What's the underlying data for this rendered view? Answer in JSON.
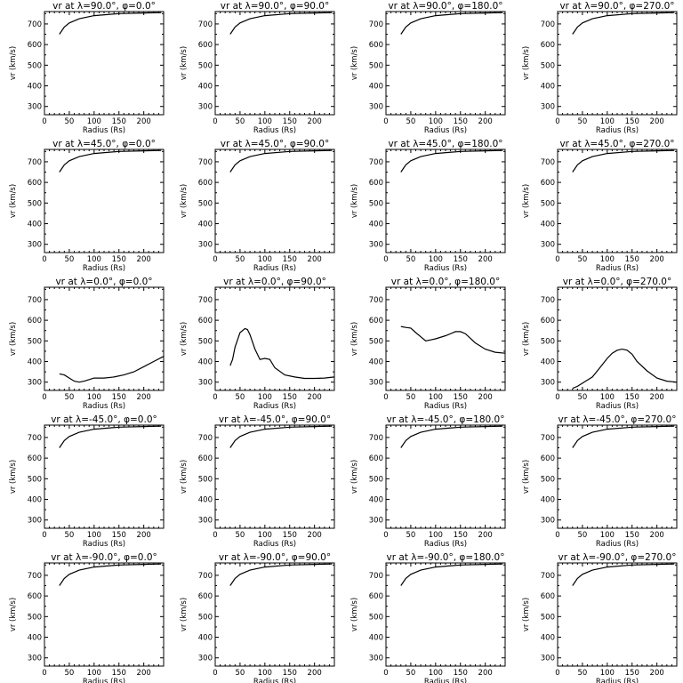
{
  "chart_data": {
    "type": "line",
    "rows": 5,
    "cols": 4,
    "xlabel": "Radius (Rs)",
    "ylabel": "vr (km/s)",
    "xlim": [
      0,
      240
    ],
    "ylim": [
      260,
      760
    ],
    "xticks": [
      0,
      50,
      100,
      150,
      200
    ],
    "yticks": [
      300,
      400,
      500,
      600,
      700
    ],
    "panels": [
      {
        "title": "vr at λ=90.0°, φ=0.0°",
        "x": [
          30,
          40,
          50,
          70,
          100,
          150,
          200,
          235
        ],
        "y": [
          650,
          685,
          705,
          725,
          740,
          750,
          753,
          755
        ]
      },
      {
        "title": "vr at λ=90.0°, φ=90.0°",
        "x": [
          30,
          40,
          50,
          70,
          100,
          150,
          200,
          235
        ],
        "y": [
          650,
          685,
          705,
          725,
          740,
          750,
          753,
          755
        ]
      },
      {
        "title": "vr at λ=90.0°, φ=180.0°",
        "x": [
          30,
          40,
          50,
          70,
          100,
          150,
          200,
          235
        ],
        "y": [
          650,
          685,
          705,
          725,
          740,
          750,
          753,
          755
        ]
      },
      {
        "title": "vr at λ=90.0°, φ=270.0°",
        "x": [
          30,
          40,
          50,
          70,
          100,
          150,
          200,
          235
        ],
        "y": [
          650,
          685,
          705,
          725,
          740,
          750,
          753,
          755
        ]
      },
      {
        "title": "vr at λ=45.0°, φ=0.0°",
        "x": [
          30,
          40,
          50,
          70,
          100,
          150,
          200,
          235
        ],
        "y": [
          650,
          685,
          705,
          725,
          740,
          750,
          753,
          755
        ]
      },
      {
        "title": "vr at λ=45.0°, φ=90.0°",
        "x": [
          30,
          40,
          50,
          70,
          100,
          150,
          200,
          235
        ],
        "y": [
          650,
          685,
          705,
          725,
          740,
          750,
          753,
          755
        ]
      },
      {
        "title": "vr at λ=45.0°, φ=180.0°",
        "x": [
          30,
          40,
          50,
          70,
          100,
          150,
          200,
          235
        ],
        "y": [
          650,
          685,
          705,
          725,
          740,
          750,
          753,
          755
        ]
      },
      {
        "title": "vr at λ=45.0°, φ=270.0°",
        "x": [
          30,
          40,
          50,
          70,
          100,
          150,
          200,
          235
        ],
        "y": [
          650,
          685,
          705,
          725,
          740,
          750,
          753,
          755
        ]
      },
      {
        "title": "vr at λ=0.0°, φ=0.0°",
        "x": [
          30,
          40,
          50,
          60,
          70,
          80,
          100,
          120,
          140,
          160,
          180,
          200,
          220,
          240
        ],
        "y": [
          340,
          335,
          320,
          305,
          300,
          305,
          320,
          320,
          325,
          335,
          350,
          375,
          400,
          425
        ]
      },
      {
        "title": "vr at λ=0.0°, φ=90.0°",
        "x": [
          30,
          35,
          40,
          50,
          60,
          65,
          70,
          80,
          90,
          100,
          110,
          120,
          140,
          160,
          180,
          200,
          220,
          240
        ],
        "y": [
          380,
          410,
          470,
          540,
          560,
          555,
          530,
          460,
          410,
          415,
          410,
          370,
          335,
          325,
          318,
          318,
          320,
          325
        ]
      },
      {
        "title": "vr at λ=0.0°, φ=180.0°",
        "x": [
          30,
          40,
          50,
          60,
          70,
          80,
          90,
          100,
          120,
          140,
          150,
          160,
          180,
          200,
          220,
          240
        ],
        "y": [
          570,
          565,
          562,
          540,
          520,
          500,
          505,
          510,
          525,
          545,
          545,
          535,
          490,
          460,
          445,
          440
        ]
      },
      {
        "title": "vr at λ=0.0°, φ=270.0°",
        "x": [
          30,
          40,
          50,
          60,
          70,
          80,
          90,
          100,
          110,
          120,
          130,
          140,
          150,
          160,
          180,
          200,
          220,
          240
        ],
        "y": [
          270,
          280,
          295,
          310,
          325,
          355,
          385,
          415,
          440,
          455,
          460,
          455,
          435,
          400,
          355,
          320,
          305,
          300
        ]
      },
      {
        "title": "vr at λ=-45.0°, φ=0.0°",
        "x": [
          30,
          40,
          50,
          70,
          100,
          150,
          200,
          235
        ],
        "y": [
          650,
          685,
          705,
          725,
          740,
          750,
          753,
          755
        ]
      },
      {
        "title": "vr at λ=-45.0°, φ=90.0°",
        "x": [
          30,
          40,
          50,
          70,
          100,
          150,
          200,
          235
        ],
        "y": [
          650,
          685,
          705,
          725,
          740,
          750,
          753,
          755
        ]
      },
      {
        "title": "vr at λ=-45.0°, φ=180.0°",
        "x": [
          30,
          40,
          50,
          70,
          100,
          150,
          200,
          235
        ],
        "y": [
          650,
          685,
          705,
          725,
          740,
          750,
          753,
          755
        ]
      },
      {
        "title": "vr at λ=-45.0°, φ=270.0°",
        "x": [
          30,
          40,
          50,
          70,
          100,
          150,
          200,
          235
        ],
        "y": [
          650,
          685,
          705,
          725,
          740,
          750,
          753,
          755
        ]
      },
      {
        "title": "vr at λ=-90.0°, φ=0.0°",
        "x": [
          30,
          40,
          50,
          70,
          100,
          150,
          200,
          235
        ],
        "y": [
          650,
          685,
          705,
          725,
          740,
          750,
          753,
          755
        ]
      },
      {
        "title": "vr at λ=-90.0°, φ=90.0°",
        "x": [
          30,
          40,
          50,
          70,
          100,
          150,
          200,
          235
        ],
        "y": [
          650,
          685,
          705,
          725,
          740,
          750,
          753,
          755
        ]
      },
      {
        "title": "vr at λ=-90.0°, φ=180.0°",
        "x": [
          30,
          40,
          50,
          70,
          100,
          150,
          200,
          235
        ],
        "y": [
          650,
          685,
          705,
          725,
          740,
          750,
          753,
          755
        ]
      },
      {
        "title": "vr at λ=-90.0°, φ=270.0°",
        "x": [
          30,
          40,
          50,
          70,
          100,
          150,
          200,
          235
        ],
        "y": [
          650,
          685,
          705,
          725,
          740,
          750,
          753,
          755
        ]
      }
    ]
  }
}
